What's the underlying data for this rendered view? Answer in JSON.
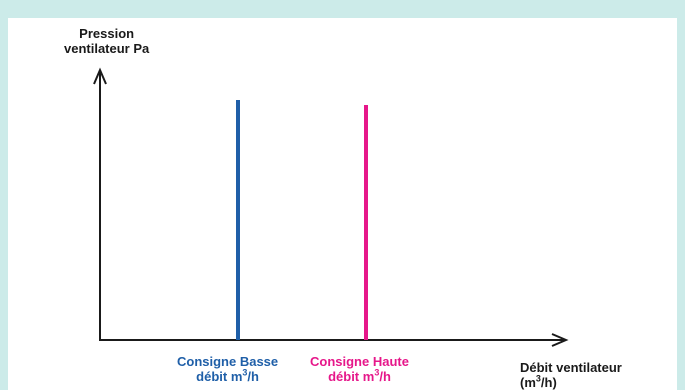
{
  "colors": {
    "frame": "#ccebe9",
    "panel": "#ffffff",
    "axis": "#1a1a1a",
    "low": "#1f5fa8",
    "high": "#e6178a"
  },
  "y_axis": {
    "line1": "Pression",
    "line2": "ventilateur Pa"
  },
  "x_axis": {
    "line1": "Débit ventilateur",
    "line2_pre": "(m",
    "line2_sup": "3",
    "line2_post": "/h)"
  },
  "setpoints": {
    "low": {
      "line1": "Consigne Basse",
      "line2_pre": "débit m",
      "line2_sup": "3",
      "line2_post": "/h"
    },
    "high": {
      "line1": "Consigne Haute",
      "line2_pre": "débit m",
      "line2_sup": "3",
      "line2_post": "/h"
    }
  }
}
